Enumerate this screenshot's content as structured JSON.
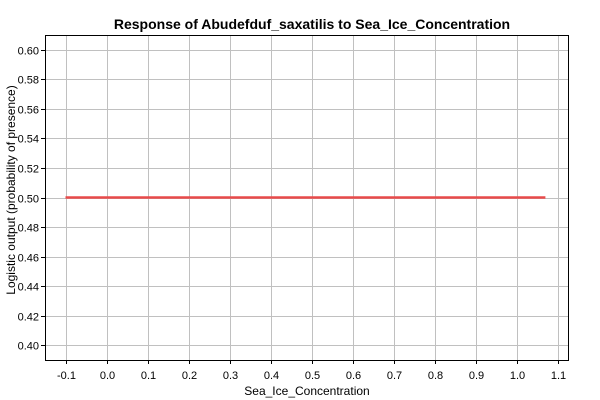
{
  "chart_data": {
    "type": "line",
    "title": "Response of Abudefduf_saxatilis to Sea_Ice_Concentration",
    "xlabel": "Sea_Ice_Concentration",
    "ylabel": "Logistic output (probability of presence)",
    "xlim": [
      -0.15,
      1.125
    ],
    "ylim": [
      0.39,
      0.61
    ],
    "x_ticks": [
      -0.1,
      0.0,
      0.1,
      0.2,
      0.3,
      0.4,
      0.5,
      0.6,
      0.7,
      0.8,
      0.9,
      1.0,
      1.1
    ],
    "x_tick_labels": [
      "-0.1",
      "0.0",
      "0.1",
      "0.2",
      "0.3",
      "0.4",
      "0.5",
      "0.6",
      "0.7",
      "0.8",
      "0.9",
      "1.0",
      "1.1"
    ],
    "y_ticks": [
      0.4,
      0.42,
      0.44,
      0.46,
      0.48,
      0.5,
      0.52,
      0.54,
      0.56,
      0.58,
      0.6
    ],
    "y_tick_labels": [
      "0.40",
      "0.42",
      "0.44",
      "0.46",
      "0.48",
      "0.50",
      "0.52",
      "0.54",
      "0.56",
      "0.58",
      "0.60"
    ],
    "grid": true,
    "series": [
      {
        "color": "#e84a4a",
        "x": [
          -0.1,
          1.07
        ],
        "y": [
          0.5,
          0.5
        ]
      }
    ]
  }
}
